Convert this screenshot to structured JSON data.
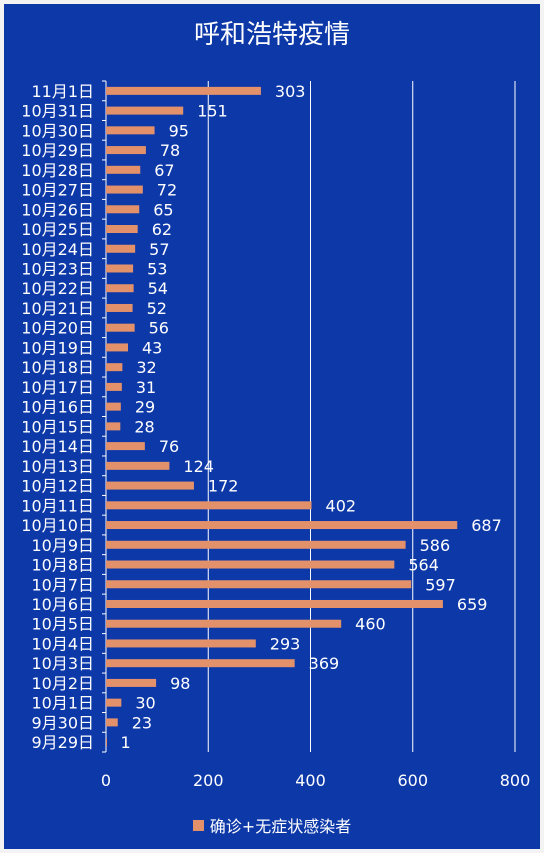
{
  "chart_data": {
    "type": "bar",
    "orientation": "horizontal",
    "title": "呼和浩特疫情",
    "categories": [
      "11月1日",
      "10月31日",
      "10月30日",
      "10月29日",
      "10月28日",
      "10月27日",
      "10月26日",
      "10月25日",
      "10月24日",
      "10月23日",
      "10月22日",
      "10月21日",
      "10月20日",
      "10月19日",
      "10月18日",
      "10月17日",
      "10月16日",
      "10月15日",
      "10月14日",
      "10月13日",
      "10月12日",
      "10月11日",
      "10月10日",
      "10月9日",
      "10月8日",
      "10月7日",
      "10月6日",
      "10月5日",
      "10月4日",
      "10月3日",
      "10月2日",
      "10月1日",
      "9月30日",
      "9月29日"
    ],
    "series": [
      {
        "name": "确诊+无症状感染者",
        "values": [
          303,
          151,
          95,
          78,
          67,
          72,
          65,
          62,
          57,
          53,
          54,
          52,
          56,
          43,
          32,
          31,
          29,
          28,
          76,
          124,
          172,
          402,
          687,
          586,
          564,
          597,
          659,
          460,
          293,
          369,
          98,
          30,
          23,
          1
        ]
      }
    ],
    "xlim": [
      0,
      800
    ],
    "xticks": [
      0,
      200,
      400,
      600,
      800
    ],
    "xlabel": "",
    "ylabel": "",
    "grid": true,
    "legend_position": "bottom",
    "colors": {
      "background": "#0d38a8",
      "bar": "#e3916a",
      "text": "#ffffff",
      "grid": "#ffffff"
    }
  }
}
